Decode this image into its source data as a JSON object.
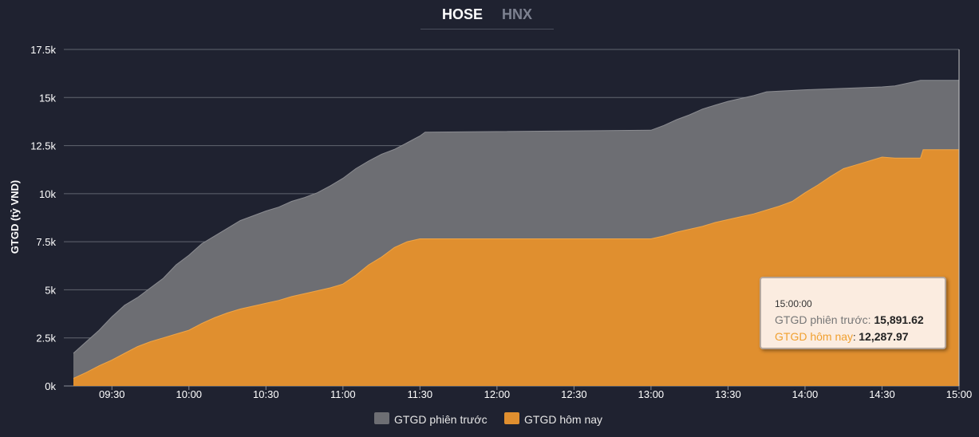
{
  "tabs": [
    {
      "label": "HOSE",
      "active": true
    },
    {
      "label": "HNX",
      "active": false
    }
  ],
  "tooltip": {
    "time": "15:00:00",
    "prev_label": "GTGD phiên trước",
    "prev_value": "15,891.62",
    "today_label": "GTGD hôm nay",
    "today_value": "12,287.97"
  },
  "colors": {
    "background": "#1f2230",
    "prev_fill": "#6d6e73",
    "today_fill": "#e08f2f",
    "grid": "#62666f"
  },
  "chart_data": {
    "type": "area",
    "ylabel": "GTGD (tỷ VND)",
    "xlabel": "",
    "ylim": [
      0,
      17500
    ],
    "yticks": [
      {
        "value": 0,
        "label": "0k"
      },
      {
        "value": 2500,
        "label": "2.5k"
      },
      {
        "value": 5000,
        "label": "5k"
      },
      {
        "value": 7500,
        "label": "7.5k"
      },
      {
        "value": 10000,
        "label": "10k"
      },
      {
        "value": 12500,
        "label": "12.5k"
      },
      {
        "value": 15000,
        "label": "15k"
      },
      {
        "value": 17500,
        "label": "17.5k"
      }
    ],
    "xrange": [
      "09:15",
      "15:00"
    ],
    "xticks": [
      "09:30",
      "10:00",
      "10:30",
      "11:00",
      "11:30",
      "12:00",
      "12:30",
      "13:00",
      "13:30",
      "14:00",
      "14:30",
      "15:00"
    ],
    "legend_position": "bottom-center",
    "series": [
      {
        "name": "GTGD phiên trước",
        "points": [
          [
            "09:15",
            1700
          ],
          [
            "09:20",
            2300
          ],
          [
            "09:25",
            2900
          ],
          [
            "09:30",
            3600
          ],
          [
            "09:35",
            4200
          ],
          [
            "09:40",
            4600
          ],
          [
            "09:45",
            5100
          ],
          [
            "09:50",
            5600
          ],
          [
            "09:55",
            6300
          ],
          [
            "10:00",
            6800
          ],
          [
            "10:05",
            7400
          ],
          [
            "10:10",
            7800
          ],
          [
            "10:15",
            8200
          ],
          [
            "10:20",
            8600
          ],
          [
            "10:25",
            8850
          ],
          [
            "10:30",
            9100
          ],
          [
            "10:35",
            9300
          ],
          [
            "10:40",
            9600
          ],
          [
            "10:45",
            9800
          ],
          [
            "10:50",
            10050
          ],
          [
            "10:55",
            10400
          ],
          [
            "11:00",
            10800
          ],
          [
            "11:05",
            11300
          ],
          [
            "11:10",
            11700
          ],
          [
            "11:15",
            12050
          ],
          [
            "11:20",
            12300
          ],
          [
            "11:25",
            12650
          ],
          [
            "11:30",
            13000
          ],
          [
            "11:32",
            13200
          ],
          [
            "13:00",
            13300
          ],
          [
            "13:05",
            13550
          ],
          [
            "13:10",
            13850
          ],
          [
            "13:15",
            14100
          ],
          [
            "13:20",
            14400
          ],
          [
            "13:25",
            14600
          ],
          [
            "13:30",
            14800
          ],
          [
            "13:35",
            14950
          ],
          [
            "13:40",
            15100
          ],
          [
            "13:45",
            15300
          ],
          [
            "14:00",
            15400
          ],
          [
            "14:30",
            15550
          ],
          [
            "14:35",
            15600
          ],
          [
            "14:45",
            15891.62
          ],
          [
            "15:00",
            15891.62
          ]
        ]
      },
      {
        "name": "GTGD hôm nay",
        "points": [
          [
            "09:15",
            400
          ],
          [
            "09:20",
            700
          ],
          [
            "09:25",
            1050
          ],
          [
            "09:30",
            1350
          ],
          [
            "09:35",
            1700
          ],
          [
            "09:40",
            2050
          ],
          [
            "09:45",
            2300
          ],
          [
            "09:50",
            2500
          ],
          [
            "09:55",
            2700
          ],
          [
            "10:00",
            2900
          ],
          [
            "10:05",
            3250
          ],
          [
            "10:10",
            3550
          ],
          [
            "10:15",
            3800
          ],
          [
            "10:20",
            4000
          ],
          [
            "10:25",
            4150
          ],
          [
            "10:30",
            4300
          ],
          [
            "10:35",
            4450
          ],
          [
            "10:40",
            4650
          ],
          [
            "10:45",
            4800
          ],
          [
            "10:50",
            4950
          ],
          [
            "10:55",
            5100
          ],
          [
            "11:00",
            5300
          ],
          [
            "11:05",
            5750
          ],
          [
            "11:10",
            6300
          ],
          [
            "11:15",
            6700
          ],
          [
            "11:20",
            7200
          ],
          [
            "11:25",
            7500
          ],
          [
            "11:30",
            7650
          ],
          [
            "12:00",
            7650
          ],
          [
            "13:00",
            7650
          ],
          [
            "13:05",
            7800
          ],
          [
            "13:10",
            8000
          ],
          [
            "13:15",
            8150
          ],
          [
            "13:20",
            8300
          ],
          [
            "13:25",
            8500
          ],
          [
            "13:30",
            8650
          ],
          [
            "13:35",
            8800
          ],
          [
            "13:40",
            8950
          ],
          [
            "13:45",
            9150
          ],
          [
            "13:50",
            9350
          ],
          [
            "13:55",
            9600
          ],
          [
            "14:00",
            10050
          ],
          [
            "14:05",
            10450
          ],
          [
            "14:10",
            10900
          ],
          [
            "14:15",
            11300
          ],
          [
            "14:20",
            11500
          ],
          [
            "14:25",
            11700
          ],
          [
            "14:30",
            11900
          ],
          [
            "14:35",
            11850
          ],
          [
            "14:45",
            11850
          ],
          [
            "14:46",
            12287.97
          ],
          [
            "15:00",
            12287.97
          ]
        ]
      }
    ]
  }
}
